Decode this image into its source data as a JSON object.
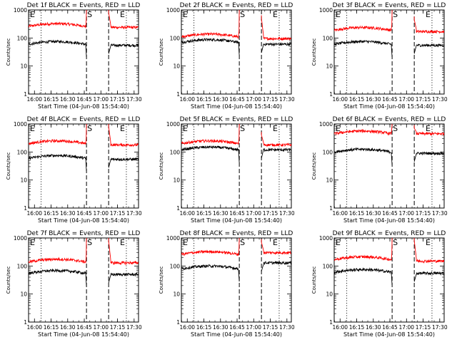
{
  "figure": {
    "xlabel": "Start Time (04-Jun-08 15:54:40)",
    "ylabel": "Counts/sec",
    "ylim": [
      1,
      1000
    ],
    "xlim": [
      "15:54:40",
      "17:34:00"
    ],
    "y_scale": "log",
    "y_ticks": [
      "1",
      "10",
      "100",
      "1000"
    ],
    "x_ticks": [
      "16:00",
      "16:15",
      "16:30",
      "16:45",
      "17:00",
      "17:15",
      "17:30"
    ],
    "series_colors": {
      "events": "#000000",
      "lld": "#ff0000"
    },
    "marker_S": "S",
    "marker_E": "E",
    "lines": {
      "E1_dotted": "16:06",
      "S_dashed": "16:47",
      "S2_dashed": "17:07",
      "E2_dotted": "17:23"
    }
  },
  "chart_data": [
    {
      "type": "line",
      "title": "Det 1f BLACK = Events, RED = LLD",
      "ranges": [
        [
          "15:54:40",
          "16:47"
        ],
        [
          "17:07",
          "17:34"
        ]
      ],
      "events_level": [
        60,
        55
      ],
      "lld_level": [
        260,
        240
      ],
      "onset_peak": 1000,
      "decay_peak": 800
    },
    {
      "type": "line",
      "title": "Det 2f BLACK = Events, RED = LLD",
      "ranges": [
        [
          "15:54:40",
          "16:47"
        ],
        [
          "17:07",
          "17:34"
        ]
      ],
      "events_level": [
        70,
        60
      ],
      "lld_level": [
        110,
        95
      ],
      "onset_peak": 1000,
      "decay_peak": 500
    },
    {
      "type": "line",
      "title": "Det 3f BLACK = Events, RED = LLD",
      "ranges": [
        [
          "15:54:40",
          "16:47"
        ],
        [
          "17:07",
          "17:34"
        ]
      ],
      "events_level": [
        60,
        55
      ],
      "lld_level": [
        190,
        170
      ],
      "onset_peak": 1000,
      "decay_peak": 450
    },
    {
      "type": "line",
      "title": "Det 4f BLACK = Events, RED = LLD",
      "ranges": [
        [
          "15:54:40",
          "16:47"
        ],
        [
          "17:07",
          "17:34"
        ]
      ],
      "events_level": [
        60,
        55
      ],
      "lld_level": [
        200,
        180
      ],
      "onset_peak": 1000,
      "decay_peak": 800
    },
    {
      "type": "line",
      "title": "Det 5f BLACK = Events, RED = LLD",
      "ranges": [
        [
          "15:54:40",
          "16:47"
        ],
        [
          "17:07",
          "17:34"
        ]
      ],
      "events_level": [
        120,
        120
      ],
      "lld_level": [
        200,
        180
      ],
      "onset_peak": 1000,
      "decay_peak": 400
    },
    {
      "type": "line",
      "title": "Det 6f BLACK = Events, RED = LLD",
      "ranges": [
        [
          "15:54:40",
          "16:47"
        ],
        [
          "17:07",
          "17:34"
        ]
      ],
      "events_level": [
        100,
        90
      ],
      "lld_level": [
        450,
        450
      ],
      "onset_peak": 1000,
      "decay_peak": 700
    },
    {
      "type": "line",
      "title": "Det 7f BLACK = Events, RED = LLD",
      "ranges": [
        [
          "15:54:40",
          "16:47"
        ],
        [
          "17:07",
          "17:34"
        ]
      ],
      "events_level": [
        55,
        50
      ],
      "lld_level": [
        140,
        130
      ],
      "onset_peak": 1000,
      "decay_peak": 800
    },
    {
      "type": "line",
      "title": "Det 8f BLACK = Events, RED = LLD",
      "ranges": [
        [
          "15:54:40",
          "16:47"
        ],
        [
          "17:07",
          "17:34"
        ]
      ],
      "events_level": [
        80,
        130
      ],
      "lld_level": [
        260,
        300
      ],
      "onset_peak": 1000,
      "decay_peak": 700
    },
    {
      "type": "line",
      "title": "Det 9f BLACK = Events, RED = LLD",
      "ranges": [
        [
          "15:54:40",
          "16:47"
        ],
        [
          "17:07",
          "17:34"
        ]
      ],
      "events_level": [
        60,
        55
      ],
      "lld_level": [
        170,
        150
      ],
      "onset_peak": 1000,
      "decay_peak": 800
    }
  ]
}
